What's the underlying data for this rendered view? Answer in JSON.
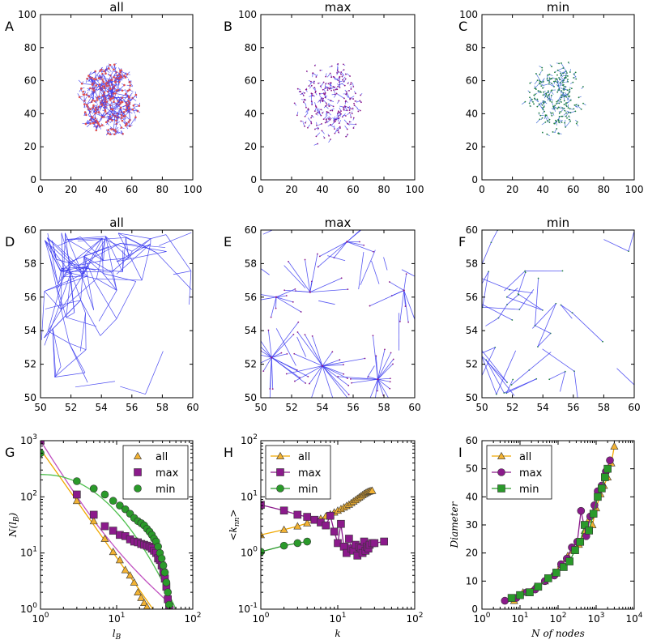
{
  "colors": {
    "all": "#f2b233",
    "allLine": "#f0a800",
    "max": "#8b1a8b",
    "maxLine": "#c050c0",
    "min": "#2a9a2a",
    "minLine": "#50c050",
    "edge": "#3a3af0",
    "edgeMin": "#2f5fd0",
    "node": "#e05050",
    "nodeMin": "#208040"
  },
  "chart_data": [
    {
      "id": "A",
      "type": "network",
      "panel_label": "A",
      "title": "all",
      "xlim": [
        0,
        100
      ],
      "ylim": [
        0,
        100
      ],
      "x_ticks": [
        "0",
        "20",
        "40",
        "60",
        "80",
        "100"
      ],
      "y_ticks": [
        "0",
        "20",
        "40",
        "60",
        "80",
        "100"
      ],
      "cloud_center": [
        45,
        48
      ],
      "cloud_radius": 20,
      "style": "dense-with-nodes"
    },
    {
      "id": "B",
      "type": "network",
      "panel_label": "B",
      "title": "max",
      "xlim": [
        0,
        100
      ],
      "ylim": [
        0,
        100
      ],
      "x_ticks": [
        "0",
        "20",
        "40",
        "60",
        "80",
        "100"
      ],
      "y_ticks": [
        "0",
        "20",
        "40",
        "60",
        "80",
        "100"
      ],
      "cloud_center": [
        45,
        47
      ],
      "cloud_radius": 23,
      "style": "star-tree"
    },
    {
      "id": "C",
      "type": "network",
      "panel_label": "C",
      "title": "min",
      "xlim": [
        0,
        100
      ],
      "ylim": [
        0,
        100
      ],
      "x_ticks": [
        "0",
        "20",
        "40",
        "60",
        "80",
        "100"
      ],
      "y_ticks": [
        "0",
        "20",
        "40",
        "60",
        "80",
        "100"
      ],
      "cloud_center": [
        48,
        50
      ],
      "cloud_radius": 20,
      "style": "path-tree"
    },
    {
      "id": "D",
      "type": "network",
      "panel_label": "D",
      "title": "all",
      "xlim": [
        50,
        60
      ],
      "ylim": [
        50,
        60
      ],
      "x_ticks": [
        "50",
        "52",
        "54",
        "56",
        "58",
        "60"
      ],
      "y_ticks": [
        "50",
        "52",
        "54",
        "56",
        "58",
        "60"
      ],
      "style": "zoom-dense"
    },
    {
      "id": "E",
      "type": "network",
      "panel_label": "E",
      "title": "max",
      "xlim": [
        50,
        60
      ],
      "ylim": [
        50,
        60
      ],
      "x_ticks": [
        "50",
        "52",
        "54",
        "56",
        "58",
        "60"
      ],
      "y_ticks": [
        "50",
        "52",
        "54",
        "56",
        "58",
        "60"
      ],
      "hubs": [
        [
          50.7,
          52.4
        ],
        [
          54.0,
          51.9
        ],
        [
          57.6,
          51.1
        ],
        [
          53.2,
          56.3
        ],
        [
          59.3,
          56.4
        ],
        [
          55.6,
          59.3
        ],
        [
          51.0,
          56.0
        ]
      ],
      "style": "zoom-star"
    },
    {
      "id": "F",
      "type": "network",
      "panel_label": "F",
      "title": "min",
      "xlim": [
        50,
        60
      ],
      "ylim": [
        50,
        60
      ],
      "x_ticks": [
        "50",
        "52",
        "54",
        "56",
        "58",
        "60"
      ],
      "y_ticks": [
        "50",
        "52",
        "54",
        "56",
        "58",
        "60"
      ],
      "style": "zoom-path"
    },
    {
      "id": "G",
      "type": "scatter",
      "panel_label": "G",
      "title": "",
      "xscale": "log",
      "yscale": "log",
      "xlim": [
        1,
        100
      ],
      "ylim": [
        1,
        1000
      ],
      "xlabel": "l_B",
      "ylabel": "N(l_B)",
      "x_tick_labels": [
        "10^0",
        "10^1",
        "10^2"
      ],
      "y_tick_labels": [
        "10^0",
        "10^1",
        "10^2",
        "10^3"
      ],
      "legend_position": "top-right",
      "series": [
        {
          "name": "all",
          "marker": "triangle",
          "x": [
            1,
            3,
            5,
            7,
            9,
            11,
            13,
            15,
            17,
            19,
            21,
            23,
            25
          ],
          "y": [
            1000,
            85,
            37,
            18,
            10.5,
            7.5,
            5,
            4,
            3,
            2,
            1.6,
            1.3,
            1.1
          ]
        },
        {
          "name": "max",
          "marker": "square",
          "x": [
            1,
            3,
            5,
            7,
            9,
            11,
            13,
            15,
            17,
            19,
            21,
            23,
            25,
            27,
            29,
            31,
            33,
            35,
            37,
            39,
            41,
            43,
            45,
            47,
            49
          ],
          "y": [
            1000,
            110,
            48,
            30,
            25,
            21,
            20,
            17.5,
            16,
            15.5,
            14.5,
            14,
            13.5,
            13,
            12,
            11,
            10,
            8,
            7.5,
            6,
            4.5,
            3.5,
            2.5,
            1.5,
            1.1
          ]
        },
        {
          "name": "min",
          "marker": "circle",
          "x": [
            1,
            3,
            5,
            7,
            9,
            11,
            13,
            15,
            17,
            19,
            21,
            23,
            25,
            27,
            29,
            31,
            33,
            35,
            37,
            39,
            41,
            43,
            45,
            47,
            49
          ],
          "y": [
            600,
            190,
            140,
            110,
            85,
            70,
            60,
            50,
            42,
            37,
            34,
            31,
            27,
            24,
            21,
            18,
            16,
            13,
            10,
            8,
            6,
            4.5,
            3,
            2,
            1.2
          ]
        }
      ],
      "fits": [
        {
          "name": "all",
          "x": [
            1,
            30
          ],
          "y": [
            700,
            1
          ]
        },
        {
          "name": "max",
          "x": [
            1,
            60
          ],
          "y": [
            1000,
            1
          ]
        },
        {
          "name": "min",
          "x": [
            1,
            60
          ],
          "y": [
            250,
            1
          ]
        }
      ]
    },
    {
      "id": "H",
      "type": "line",
      "panel_label": "H",
      "title": "",
      "xscale": "log",
      "yscale": "log",
      "xlim": [
        1,
        100
      ],
      "ylim": [
        0.1,
        100
      ],
      "xlabel": "k",
      "ylabel": "<k_nn>",
      "x_tick_labels": [
        "10^0",
        "10^1",
        "10^2"
      ],
      "y_tick_labels": [
        "10^-1",
        "10^0",
        "10^1",
        "10^2"
      ],
      "legend_position": "top-left",
      "series": [
        {
          "name": "all",
          "marker": "triangle",
          "x": [
            1,
            2,
            3,
            4,
            5,
            6,
            7,
            8,
            9,
            10,
            11,
            12,
            13,
            14,
            15,
            16,
            17,
            18,
            19,
            20,
            21,
            22,
            23,
            24,
            25,
            26,
            27,
            28
          ],
          "y": [
            2.1,
            2.6,
            3.0,
            3.4,
            3.8,
            4.1,
            4.5,
            4.9,
            5.3,
            5.7,
            6.1,
            6.5,
            6.9,
            7.3,
            7.8,
            8.3,
            8.8,
            9.3,
            9.8,
            10.3,
            10.8,
            11.3,
            11.7,
            12.1,
            12.4,
            12.6,
            12.8,
            12.9
          ]
        },
        {
          "name": "max",
          "marker": "square",
          "x": [
            1,
            2,
            3,
            4,
            5,
            6,
            7,
            8,
            9,
            10,
            11,
            12,
            13,
            14,
            15,
            16,
            17,
            18,
            19,
            20,
            21,
            22,
            23,
            24,
            25,
            26,
            28,
            30,
            40
          ],
          "y": [
            7.2,
            5.7,
            4.8,
            4.4,
            3.9,
            3.5,
            3.1,
            4.6,
            2.4,
            1.5,
            3.3,
            1.3,
            1.0,
            1.8,
            1.2,
            1.1,
            1.4,
            0.9,
            1.3,
            1.2,
            1.0,
            1.6,
            1.1,
            1.3,
            1.2,
            1.4,
            1.5,
            1.5,
            1.6
          ]
        },
        {
          "name": "min",
          "marker": "circle",
          "x": [
            1,
            2,
            3,
            4
          ],
          "y": [
            1.05,
            1.35,
            1.5,
            1.6
          ]
        }
      ]
    },
    {
      "id": "I",
      "type": "line",
      "panel_label": "I",
      "title": "",
      "xscale": "log",
      "yscale": "linear",
      "xlim": [
        1,
        10000
      ],
      "ylim": [
        0,
        60
      ],
      "xlabel": "N of nodes",
      "ylabel": "Diameter",
      "x_tick_labels": [
        "10^0",
        "10^1",
        "10^2",
        "10^3",
        "10^4"
      ],
      "y_tick_labels": [
        "0",
        "10",
        "20",
        "30",
        "40",
        "50",
        "60"
      ],
      "legend_position": "top-left",
      "series": [
        {
          "name": "all",
          "marker": "triangle",
          "x": [
            7,
            12,
            25,
            45,
            80,
            120,
            180,
            250,
            350,
            500,
            650,
            800,
            1000,
            1300,
            1600,
            2000,
            2500,
            3000
          ],
          "y": [
            3,
            6,
            8,
            10,
            13,
            16,
            19,
            21,
            23,
            28,
            32,
            30,
            36,
            41,
            44,
            47,
            52,
            58
          ]
        },
        {
          "name": "max",
          "marker": "circle",
          "x": [
            4,
            8,
            15,
            25,
            45,
            80,
            120,
            170,
            230,
            320,
            400,
            550,
            700,
            900,
            1100,
            1400,
            1800,
            2300
          ],
          "y": [
            3,
            4,
            6,
            7,
            10,
            12,
            16,
            18,
            22,
            24,
            35,
            26,
            33,
            37,
            42,
            44,
            49,
            53
          ]
        },
        {
          "name": "min",
          "marker": "square",
          "x": [
            6,
            10,
            18,
            30,
            55,
            90,
            140,
            200,
            280,
            380,
            500,
            650,
            850,
            1100,
            1400,
            1700,
            2000
          ],
          "y": [
            4,
            5,
            6,
            8,
            11,
            13,
            15,
            17,
            21,
            24,
            30,
            28,
            34,
            40,
            43,
            47,
            50
          ]
        }
      ]
    }
  ]
}
